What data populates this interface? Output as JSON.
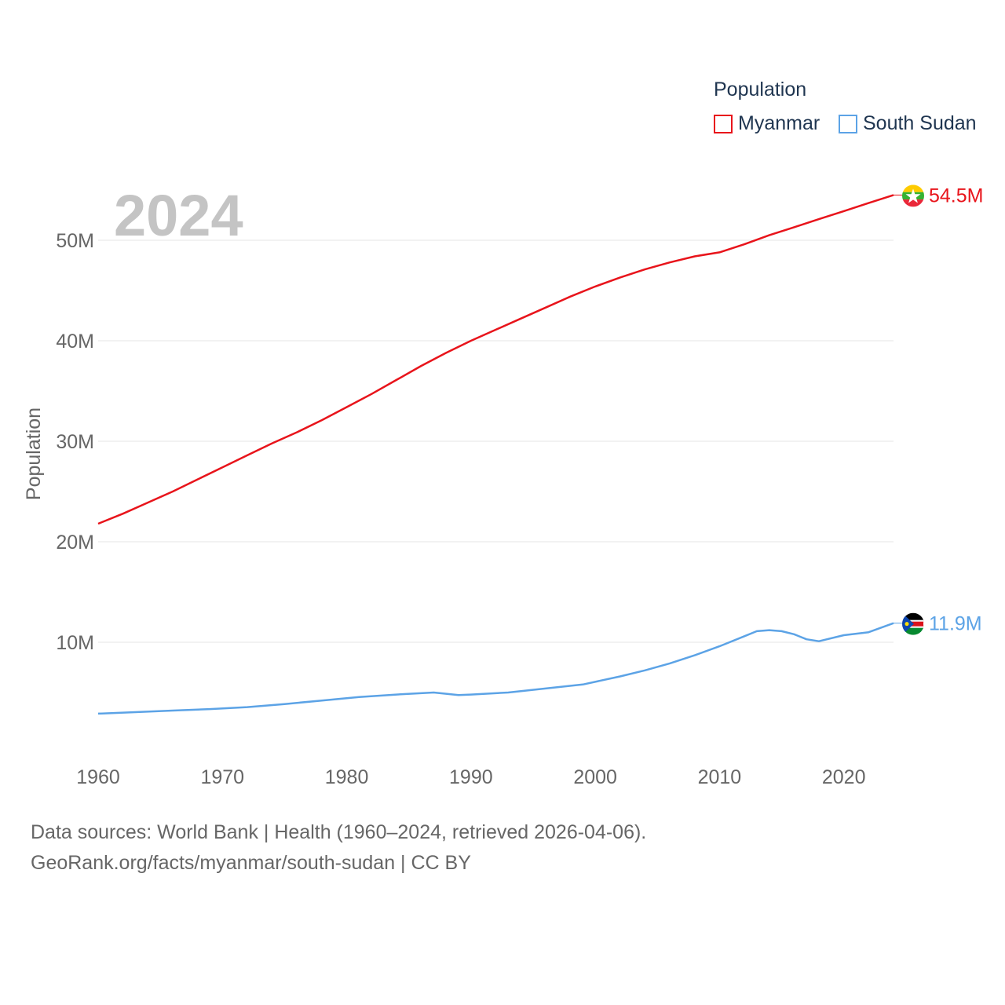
{
  "legend": {
    "title": "Population",
    "items": [
      {
        "name": "Myanmar",
        "color": "#e8141b"
      },
      {
        "name": "South Sudan",
        "color": "#5ca3e6"
      }
    ]
  },
  "year_label": "2024",
  "footer": {
    "line1": "Data sources: World Bank | Health (1960–2024, retrieved 2026-04-06).",
    "line2": "GeoRank.org/facts/myanmar/south-sudan | CC BY"
  },
  "chart_data": {
    "type": "line",
    "title": "Population",
    "ylabel": "Population",
    "xlabel": "",
    "xlim": [
      1960,
      2024
    ],
    "ylim": [
      0,
      60000000
    ],
    "x_ticks": [
      1960,
      1970,
      1980,
      1990,
      2000,
      2010,
      2020
    ],
    "y_ticks": [
      {
        "value": 10000000,
        "label": "10M"
      },
      {
        "value": 20000000,
        "label": "20M"
      },
      {
        "value": 30000000,
        "label": "30M"
      },
      {
        "value": 40000000,
        "label": "40M"
      },
      {
        "value": 50000000,
        "label": "50M"
      }
    ],
    "grid": true,
    "series": [
      {
        "name": "Myanmar",
        "color": "#e8141b",
        "end_label": "54.5M",
        "points": [
          [
            1960,
            21.8
          ],
          [
            1962,
            22.8
          ],
          [
            1964,
            23.9
          ],
          [
            1966,
            25.0
          ],
          [
            1968,
            26.2
          ],
          [
            1970,
            27.4
          ],
          [
            1972,
            28.6
          ],
          [
            1974,
            29.8
          ],
          [
            1976,
            30.9
          ],
          [
            1978,
            32.1
          ],
          [
            1980,
            33.4
          ],
          [
            1982,
            34.7
          ],
          [
            1984,
            36.1
          ],
          [
            1986,
            37.5
          ],
          [
            1988,
            38.8
          ],
          [
            1990,
            40.0
          ],
          [
            1992,
            41.1
          ],
          [
            1994,
            42.2
          ],
          [
            1996,
            43.3
          ],
          [
            1998,
            44.4
          ],
          [
            2000,
            45.4
          ],
          [
            2002,
            46.3
          ],
          [
            2004,
            47.1
          ],
          [
            2006,
            47.8
          ],
          [
            2008,
            48.4
          ],
          [
            2010,
            48.8
          ],
          [
            2012,
            49.6
          ],
          [
            2014,
            50.5
          ],
          [
            2016,
            51.3
          ],
          [
            2018,
            52.1
          ],
          [
            2020,
            52.9
          ],
          [
            2022,
            53.7
          ],
          [
            2024,
            54.5
          ]
        ]
      },
      {
        "name": "South Sudan",
        "color": "#5ca3e6",
        "end_label": "11.9M",
        "points": [
          [
            1960,
            2.9
          ],
          [
            1963,
            3.05
          ],
          [
            1966,
            3.2
          ],
          [
            1969,
            3.35
          ],
          [
            1972,
            3.55
          ],
          [
            1975,
            3.85
          ],
          [
            1978,
            4.2
          ],
          [
            1981,
            4.55
          ],
          [
            1984,
            4.8
          ],
          [
            1987,
            5.0
          ],
          [
            1989,
            4.75
          ],
          [
            1990,
            4.8
          ],
          [
            1993,
            5.0
          ],
          [
            1996,
            5.4
          ],
          [
            1999,
            5.8
          ],
          [
            2002,
            6.6
          ],
          [
            2004,
            7.2
          ],
          [
            2006,
            7.9
          ],
          [
            2008,
            8.7
          ],
          [
            2010,
            9.6
          ],
          [
            2012,
            10.6
          ],
          [
            2013,
            11.1
          ],
          [
            2014,
            11.2
          ],
          [
            2015,
            11.1
          ],
          [
            2016,
            10.8
          ],
          [
            2017,
            10.3
          ],
          [
            2018,
            10.1
          ],
          [
            2020,
            10.7
          ],
          [
            2022,
            11.0
          ],
          [
            2024,
            11.9
          ]
        ]
      }
    ]
  }
}
